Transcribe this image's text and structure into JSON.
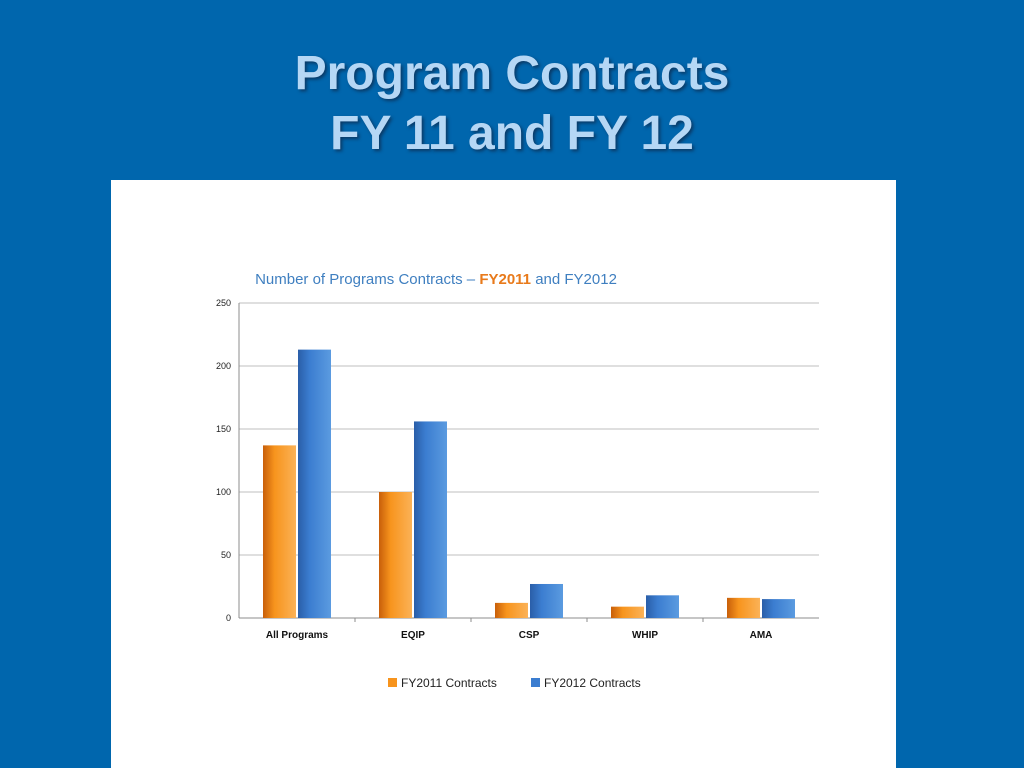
{
  "slide": {
    "title_line1": "Program Contracts",
    "title_line2": "FY 11 and FY 12"
  },
  "colors": {
    "background": "#0066ad",
    "title": "#b5d7f5",
    "chart_title": "#3f7fc0",
    "fy2011_highlight": "#e87a1b",
    "fy2011_bar": "#f7941d",
    "fy2012_bar": "#3b7dd0",
    "grid": "#bfbfbf"
  },
  "chart_data": {
    "type": "bar",
    "title_parts": [
      "Number of Programs Contracts – ",
      "FY2011",
      " and FY2012"
    ],
    "categories": [
      "All Programs",
      "EQIP",
      "CSP",
      "WHIP",
      "AMA"
    ],
    "series": [
      {
        "name": "FY2011 Contracts",
        "values": [
          137,
          100,
          12,
          9,
          16
        ]
      },
      {
        "name": "FY2012 Contracts",
        "values": [
          213,
          156,
          27,
          18,
          15
        ]
      }
    ],
    "ylim": [
      0,
      250
    ],
    "yticks": [
      0,
      50,
      100,
      150,
      200,
      250
    ],
    "grid": true,
    "legend_position": "bottom"
  }
}
